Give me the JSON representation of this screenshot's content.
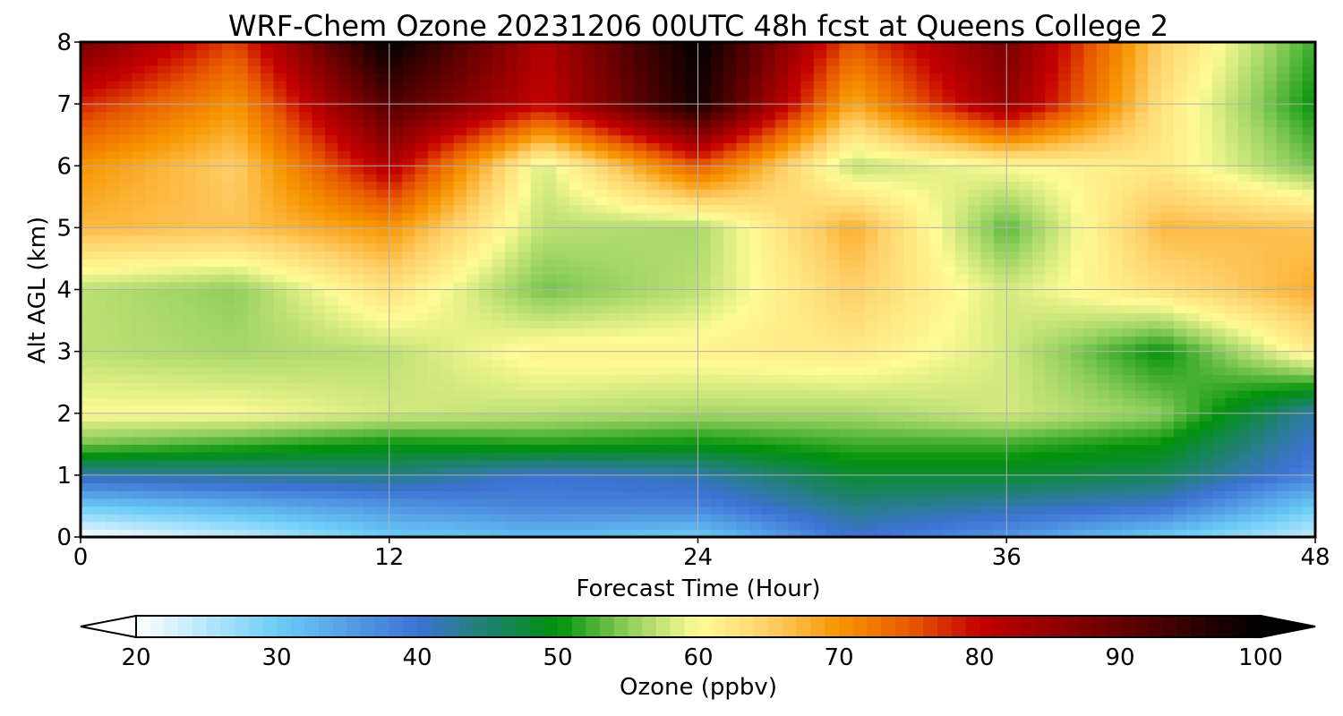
{
  "chart_data": {
    "type": "heatmap",
    "title": "WRF-Chem Ozone  20231206 00UTC 48h fcst at Queens College 2",
    "xlabel": "Forecast Time (Hour)",
    "ylabel": "Alt AGL (km)",
    "xlim": [
      0,
      48
    ],
    "ylim": [
      0,
      8
    ],
    "xticks": [
      "0",
      "12",
      "24",
      "36",
      "48"
    ],
    "yticks": [
      "0",
      "1",
      "2",
      "3",
      "4",
      "5",
      "6",
      "7",
      "8"
    ],
    "grid": true,
    "colorbar": {
      "label": "Ozone  (ppbv)",
      "min": 20,
      "max": 100,
      "ticks": [
        "20",
        "30",
        "40",
        "50",
        "60",
        "70",
        "80",
        "90",
        "100"
      ],
      "extend": "both",
      "colors": [
        {
          "v": 20,
          "c": "#ffffff"
        },
        {
          "v": 30,
          "c": "#6ccdf7"
        },
        {
          "v": 40,
          "c": "#3d72d4"
        },
        {
          "v": 50,
          "c": "#00910a"
        },
        {
          "v": 55,
          "c": "#90cf5c"
        },
        {
          "v": 60,
          "c": "#fffb96"
        },
        {
          "v": 65,
          "c": "#ffd06a"
        },
        {
          "v": 70,
          "c": "#f79500"
        },
        {
          "v": 75,
          "c": "#e85a00"
        },
        {
          "v": 80,
          "c": "#c40000"
        },
        {
          "v": 90,
          "c": "#650000"
        },
        {
          "v": 100,
          "c": "#000000"
        }
      ]
    },
    "x": [
      0,
      6,
      12,
      18,
      24,
      30,
      36,
      42,
      48
    ],
    "y": [
      0,
      0.5,
      1,
      1.5,
      2,
      3,
      4,
      5,
      6,
      7,
      8
    ],
    "values": [
      [
        20,
        24,
        30,
        32,
        30,
        40,
        36,
        30,
        24
      ],
      [
        30,
        33,
        36,
        38,
        38,
        44,
        42,
        40,
        30
      ],
      [
        42,
        43,
        44,
        40,
        42,
        48,
        48,
        46,
        38
      ],
      [
        54,
        52,
        50,
        51,
        50,
        52,
        52,
        50,
        40
      ],
      [
        60,
        60,
        58,
        57,
        56,
        56,
        58,
        55,
        42
      ],
      [
        57,
        56,
        57,
        61,
        61,
        62,
        58,
        50,
        62
      ],
      [
        57,
        55,
        63,
        54,
        57,
        65,
        58,
        63,
        68
      ],
      [
        67,
        66,
        70,
        57,
        56,
        68,
        53,
        67,
        66
      ],
      [
        70,
        65,
        82,
        58,
        75,
        57,
        60,
        62,
        54
      ],
      [
        78,
        70,
        92,
        80,
        98,
        68,
        85,
        63,
        50
      ],
      [
        88,
        76,
        100,
        82,
        100,
        75,
        88,
        65,
        52
      ]
    ]
  }
}
